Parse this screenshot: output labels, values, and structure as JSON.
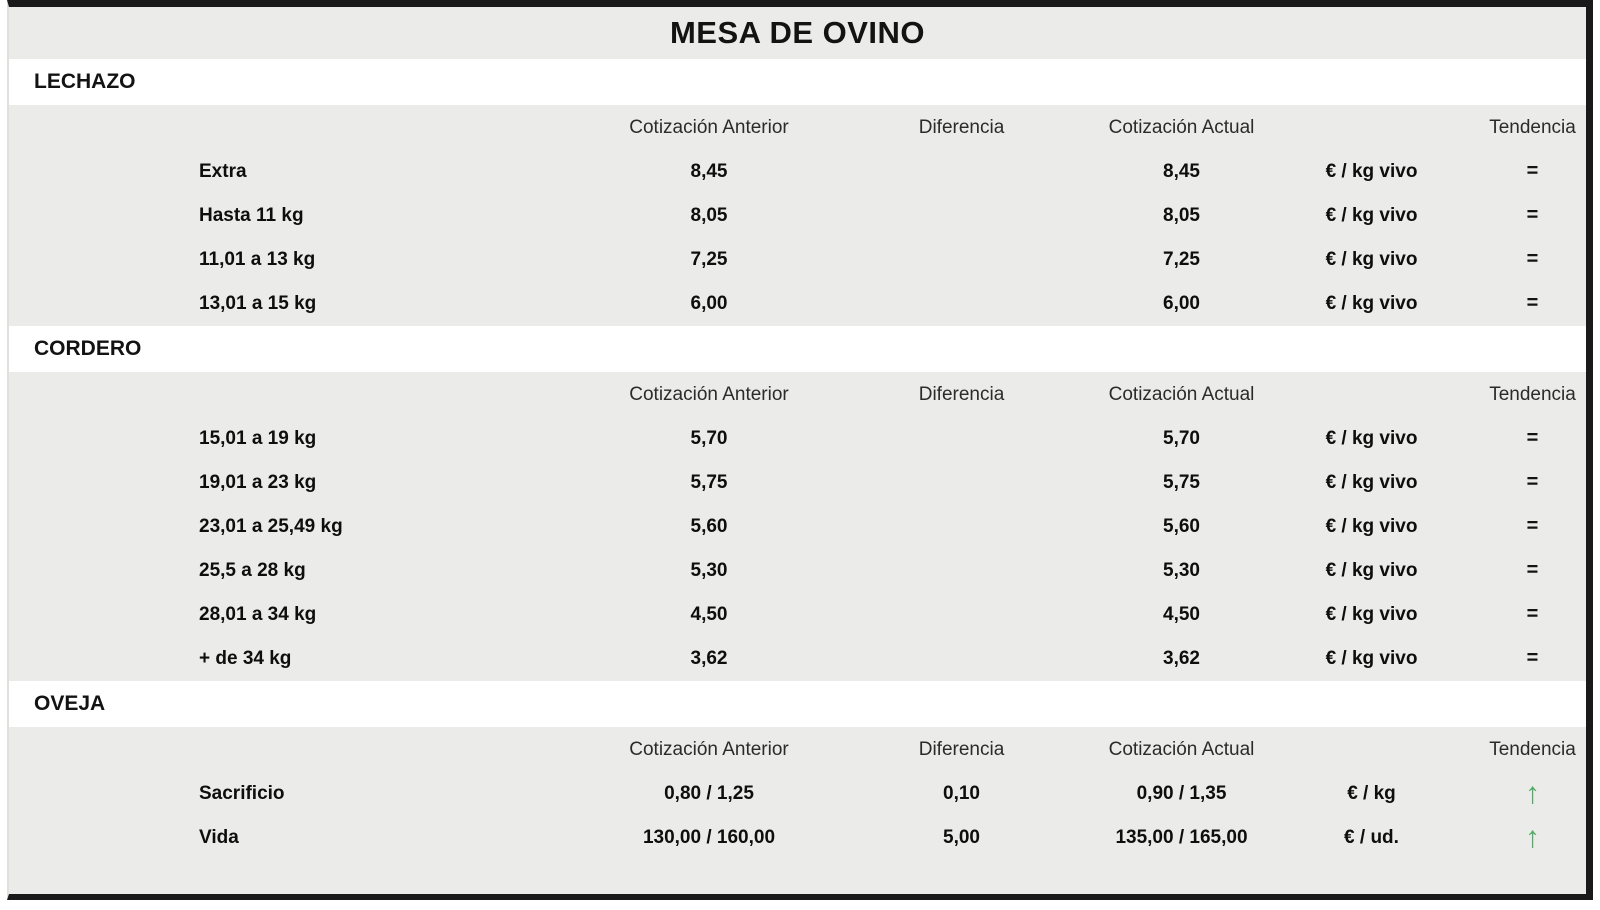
{
  "title": "MESA DE OVINO",
  "columns": {
    "label": "",
    "anterior": "Cotización Anterior",
    "diferencia": "Diferencia",
    "actual": "Cotización Actual",
    "unit": "",
    "tendencia": "Tendencia"
  },
  "trend_symbols": {
    "equal": "=",
    "up": "↑"
  },
  "colors": {
    "table_background": "#ebebe9",
    "section_band_background": "#ffffff",
    "border_black": "#1a1a1a",
    "trend_up_green": "#4fae63"
  },
  "sections": [
    {
      "name": "LECHAZO",
      "rows": [
        {
          "label": "Extra",
          "anterior": "8,45",
          "diferencia": "",
          "actual": "8,45",
          "unit": "€ / kg vivo",
          "trend": "equal"
        },
        {
          "label": "Hasta 11 kg",
          "anterior": "8,05",
          "diferencia": "",
          "actual": "8,05",
          "unit": "€ / kg vivo",
          "trend": "equal"
        },
        {
          "label": "11,01 a 13 kg",
          "anterior": "7,25",
          "diferencia": "",
          "actual": "7,25",
          "unit": "€ / kg vivo",
          "trend": "equal"
        },
        {
          "label": "13,01 a 15 kg",
          "anterior": "6,00",
          "diferencia": "",
          "actual": "6,00",
          "unit": "€ / kg vivo",
          "trend": "equal"
        }
      ]
    },
    {
      "name": "CORDERO",
      "rows": [
        {
          "label": "15,01 a 19 kg",
          "anterior": "5,70",
          "diferencia": "",
          "actual": "5,70",
          "unit": "€ / kg vivo",
          "trend": "equal"
        },
        {
          "label": "19,01 a 23 kg",
          "anterior": "5,75",
          "diferencia": "",
          "actual": "5,75",
          "unit": "€ / kg vivo",
          "trend": "equal"
        },
        {
          "label": "23,01 a 25,49 kg",
          "anterior": "5,60",
          "diferencia": "",
          "actual": "5,60",
          "unit": "€ / kg vivo",
          "trend": "equal"
        },
        {
          "label": "25,5 a 28 kg",
          "anterior": "5,30",
          "diferencia": "",
          "actual": "5,30",
          "unit": "€ / kg vivo",
          "trend": "equal"
        },
        {
          "label": "28,01 a 34 kg",
          "anterior": "4,50",
          "diferencia": "",
          "actual": "4,50",
          "unit": "€ / kg vivo",
          "trend": "equal"
        },
        {
          "label": "+ de 34 kg",
          "anterior": "3,62",
          "diferencia": "",
          "actual": "3,62",
          "unit": "€ / kg vivo",
          "trend": "equal"
        }
      ]
    },
    {
      "name": "OVEJA",
      "rows": [
        {
          "label": "Sacrificio",
          "anterior": "0,80 / 1,25",
          "diferencia": "0,10",
          "actual": "0,90 / 1,35",
          "unit": "€ / kg",
          "trend": "up"
        },
        {
          "label": "Vida",
          "anterior": "130,00 / 160,00",
          "diferencia": "5,00",
          "actual": "135,00 / 165,00",
          "unit": "€ / ud.",
          "trend": "up"
        }
      ]
    }
  ]
}
